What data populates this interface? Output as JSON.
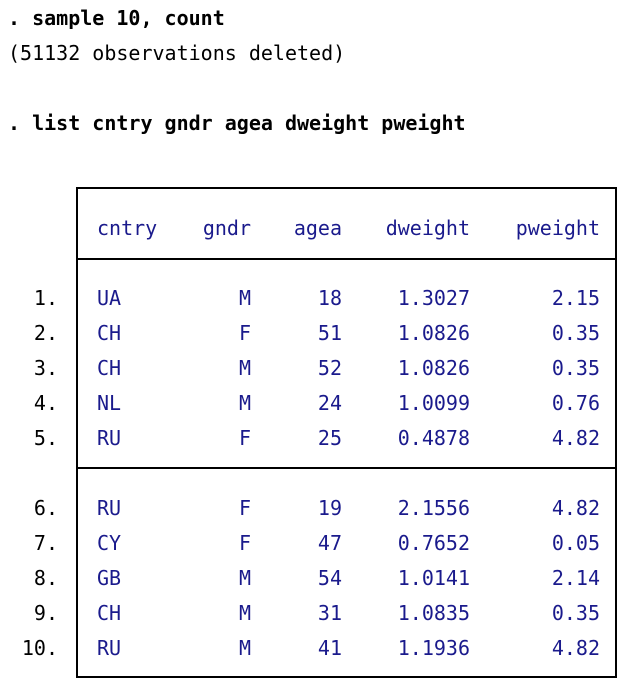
{
  "console": {
    "cmd1": ". sample 10, count",
    "out1": "(51132 observations deleted)",
    "cmd2": ". list cntry gndr agea dweight pweight"
  },
  "table": {
    "columns": [
      "cntry",
      "gndr",
      "agea",
      "dweight",
      "pweight"
    ],
    "rows": [
      {
        "n": "1.",
        "cntry": "UA",
        "gndr": "M",
        "agea": "18",
        "dweight": "1.3027",
        "pweight": "2.15"
      },
      {
        "n": "2.",
        "cntry": "CH",
        "gndr": "F",
        "agea": "51",
        "dweight": "1.0826",
        "pweight": "0.35"
      },
      {
        "n": "3.",
        "cntry": "CH",
        "gndr": "M",
        "agea": "52",
        "dweight": "1.0826",
        "pweight": "0.35"
      },
      {
        "n": "4.",
        "cntry": "NL",
        "gndr": "M",
        "agea": "24",
        "dweight": "1.0099",
        "pweight": "0.76"
      },
      {
        "n": "5.",
        "cntry": "RU",
        "gndr": "F",
        "agea": "25",
        "dweight": "0.4878",
        "pweight": "4.82"
      },
      {
        "n": "6.",
        "cntry": "RU",
        "gndr": "F",
        "agea": "19",
        "dweight": "2.1556",
        "pweight": "4.82"
      },
      {
        "n": "7.",
        "cntry": "CY",
        "gndr": "F",
        "agea": "47",
        "dweight": "0.7652",
        "pweight": "0.05"
      },
      {
        "n": "8.",
        "cntry": "GB",
        "gndr": "M",
        "agea": "54",
        "dweight": "1.0141",
        "pweight": "2.14"
      },
      {
        "n": "9.",
        "cntry": "CH",
        "gndr": "M",
        "agea": "31",
        "dweight": "1.0835",
        "pweight": "0.35"
      },
      {
        "n": "10.",
        "cntry": "RU",
        "gndr": "M",
        "agea": "41",
        "dweight": "1.1936",
        "pweight": "4.82"
      }
    ]
  }
}
